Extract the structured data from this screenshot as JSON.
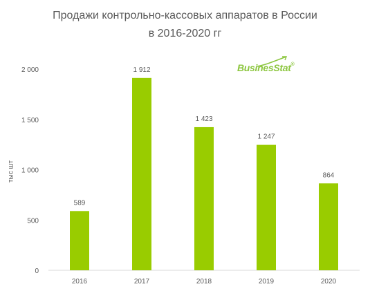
{
  "title_line1": "Продажи контрольно-кассовых аппаратов в России",
  "title_line2": "в  2016-2020 гг",
  "watermark": "BusinesStat",
  "colors": {
    "bar": "#99cc00",
    "axis": "#d9d9d9",
    "text": "#595959",
    "watermark": "#8cc63f"
  },
  "chart_data": {
    "type": "bar",
    "title": "Продажи контрольно-кассовых аппаратов в России в  2016-2020 гг",
    "ylabel": "тыс шт",
    "xlabel": "",
    "categories": [
      "2016",
      "2017",
      "2018",
      "2019",
      "2020"
    ],
    "values": [
      589,
      1912,
      1423,
      1247,
      864
    ],
    "value_labels": [
      "589",
      "1 912",
      "1 423",
      "1 247",
      "864"
    ],
    "yticks": [
      0,
      500,
      1000,
      1500,
      2000
    ],
    "ytick_labels": [
      "0",
      "500",
      "1 000",
      "1 500",
      "2 000"
    ],
    "ylim": [
      0,
      2000
    ],
    "grid": false,
    "legend": "none"
  }
}
